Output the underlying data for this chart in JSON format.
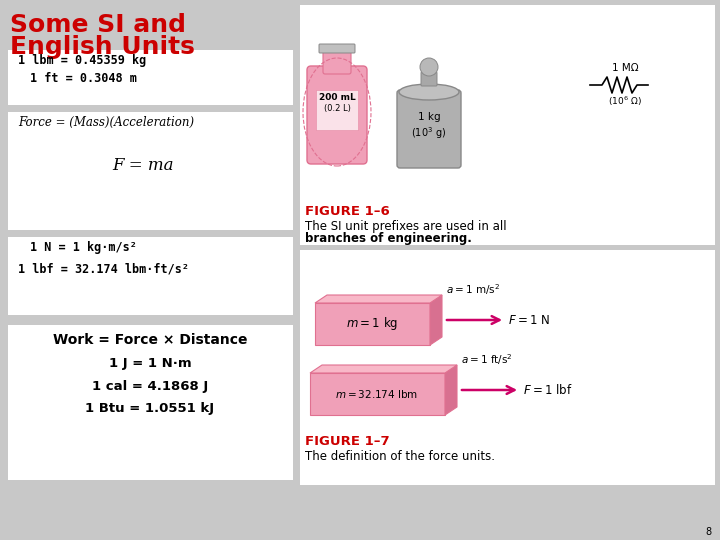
{
  "bg_color": "#c8c8c8",
  "title_line1": "Some SI and",
  "title_line2": "English Units",
  "title_color": "#cc0000",
  "title_fontsize": 18,
  "box1_lines": [
    "1 lbm = 0.45359 kg",
    "1 ft = 0.3048 m"
  ],
  "box2_lines": [
    "Force = (Mass)(Acceleration)",
    "F = ma"
  ],
  "box3_lines": [
    "1 N = 1 kg·m/s²",
    "1 lbf = 32.174 lbm·ft/s²"
  ],
  "box4_lines": [
    "Work = Force × Distance",
    "1 J = 1 N·m",
    "1 cal = 4.1868 J",
    "1 Btu = 1.0551 kJ"
  ],
  "fig16_title": "FIGURE 1–6",
  "fig16_desc1": "The SI unit prefixes are used in all",
  "fig16_desc2": "branches of engineering.",
  "fig17_title": "FIGURE 1–7",
  "fig17_desc": "The definition of the force units.",
  "figure_title_color": "#cc0000",
  "box_bg": "#ffffff",
  "text_color": "#000000",
  "pink_color": "#f0a0b8",
  "pink_dark": "#e07090",
  "gray_color": "#b8b8b8"
}
